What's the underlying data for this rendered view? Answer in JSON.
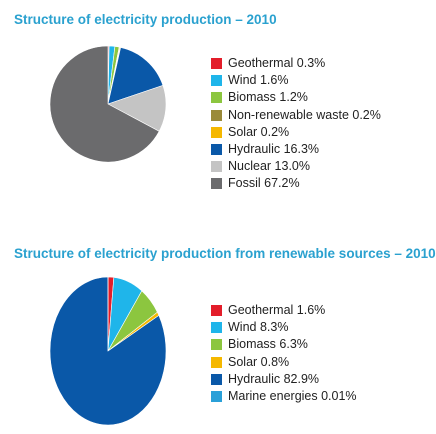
{
  "chart_data": [
    {
      "type": "pie",
      "title": "Structure of electricity production – 2010",
      "slices": [
        {
          "label": "Geothermal 0.3%",
          "value": 0.3,
          "color": "#e31d2a"
        },
        {
          "label": "Wind 1.6%",
          "value": 1.6,
          "color": "#1fb5ea"
        },
        {
          "label": "Biomass 1.2%",
          "value": 1.2,
          "color": "#8cc63f"
        },
        {
          "label": "Non-renewable waste 0.2%",
          "value": 0.2,
          "color": "#9a8a3a"
        },
        {
          "label": "Solar 0.2%",
          "value": 0.2,
          "color": "#f5b800"
        },
        {
          "label": "Hydraulic 16.3%",
          "value": 16.3,
          "color": "#0a58a8"
        },
        {
          "label": "Nuclear 13.0%",
          "value": 13.0,
          "color": "#c4c4c4"
        },
        {
          "label": "Fossil 67.2%",
          "value": 67.2,
          "color": "#6b6b6d"
        }
      ]
    },
    {
      "type": "pie",
      "title": "Structure of electricity production from renewable sources – 2010",
      "slices": [
        {
          "label": "Geothermal 1.6%",
          "value": 1.6,
          "color": "#e31d2a"
        },
        {
          "label": "Wind 8.3%",
          "value": 8.3,
          "color": "#1fb5ea"
        },
        {
          "label": "Biomass 6.3%",
          "value": 6.3,
          "color": "#8cc63f"
        },
        {
          "label": "Solar 0.8%",
          "value": 0.8,
          "color": "#f5b800"
        },
        {
          "label": "Hydraulic 82.9%",
          "value": 82.9,
          "color": "#0a58a8"
        },
        {
          "label": "Marine energies 0.01%",
          "value": 0.01,
          "color": "#2aa0d8"
        }
      ]
    }
  ]
}
